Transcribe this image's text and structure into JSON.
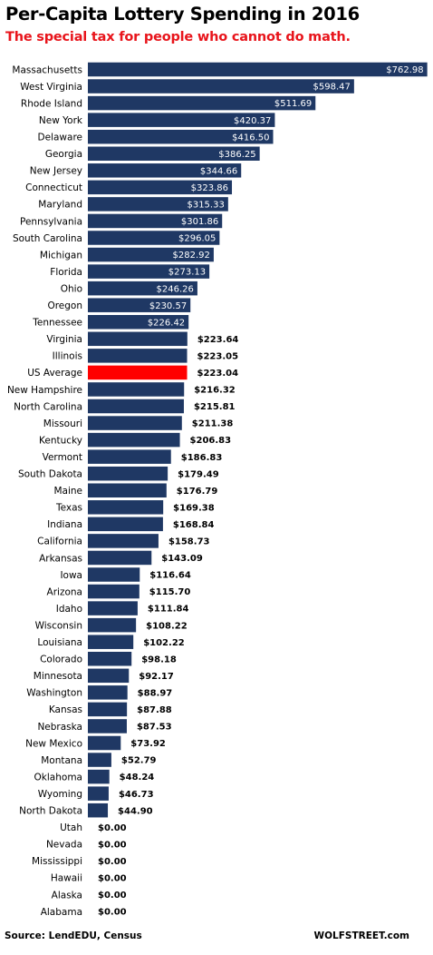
{
  "colors": {
    "bar": "#1f3864",
    "highlight": "#ff0000",
    "subtitle": "#e8141b",
    "label_inside": "#ffffff",
    "label_outside": "#000000"
  },
  "chart_data": {
    "type": "bar",
    "orientation": "horizontal",
    "title": "Per-Capita Lottery Spending in 2016",
    "subtitle": "The special tax for people who cannot do math.",
    "highlight": "US Average",
    "xlim": [
      0,
      780
    ],
    "grid": false,
    "legend": "none",
    "categories": [
      "Massachusetts",
      "West Virginia",
      "Rhode Island",
      "New York",
      "Delaware",
      "Georgia",
      "New Jersey",
      "Connecticut",
      "Maryland",
      "Pennsylvania",
      "South Carolina",
      "Michigan",
      "Florida",
      "Ohio",
      "Oregon",
      "Tennessee",
      "Virginia",
      "Illinois",
      "US Average",
      "New Hampshire",
      "North Carolina",
      "Missouri",
      "Kentucky",
      "Vermont",
      "South Dakota",
      "Maine",
      "Texas",
      "Indiana",
      "California",
      "Arkansas",
      "Iowa",
      "Arizona",
      "Idaho",
      "Wisconsin",
      "Louisiana",
      "Colorado",
      "Minnesota",
      "Washington",
      "Kansas",
      "Nebraska",
      "New Mexico",
      "Montana",
      "Oklahoma",
      "Wyoming",
      "North Dakota",
      "Utah",
      "Nevada",
      "Mississippi",
      "Hawaii",
      "Alaska",
      "Alabama"
    ],
    "values": [
      762.98,
      598.47,
      511.69,
      420.37,
      416.5,
      386.25,
      344.66,
      323.86,
      315.33,
      301.86,
      296.05,
      282.92,
      273.13,
      246.26,
      230.57,
      226.42,
      223.64,
      223.05,
      223.04,
      216.32,
      215.81,
      211.38,
      206.83,
      186.83,
      179.49,
      176.79,
      169.38,
      168.84,
      158.73,
      143.09,
      116.64,
      115.7,
      111.84,
      108.22,
      102.22,
      98.18,
      92.17,
      88.97,
      87.88,
      87.53,
      73.92,
      52.79,
      48.24,
      46.73,
      44.9,
      0,
      0,
      0,
      0,
      0,
      0
    ],
    "value_labels": [
      "$762.98",
      "$598.47",
      "$511.69",
      "$420.37",
      "$416.50",
      "$386.25",
      "$344.66",
      "$323.86",
      "$315.33",
      "$301.86",
      "$296.05",
      "$282.92",
      "$273.13",
      "$246.26",
      "$230.57",
      "$226.42",
      "$223.64",
      "$223.05",
      "$223.04",
      "$216.32",
      "$215.81",
      "$211.38",
      "$206.83",
      "$186.83",
      "$179.49",
      "$176.79",
      "$169.38",
      "$168.84",
      "$158.73",
      "$143.09",
      "$116.64",
      "$115.70",
      "$111.84",
      "$108.22",
      "$102.22",
      "$98.18",
      "$92.17",
      "$88.97",
      "$87.88",
      "$87.53",
      "$73.92",
      "$52.79",
      "$48.24",
      "$46.73",
      "$44.90",
      "$0.00",
      "$0.00",
      "$0.00",
      "$0.00",
      "$0.00",
      "$0.00"
    ]
  },
  "footer": {
    "source": "Source: LendEDU, Census",
    "brand": "WOLFSTREET.com"
  }
}
